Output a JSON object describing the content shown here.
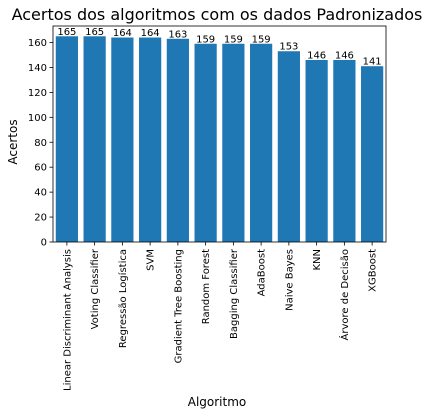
{
  "chart_data": {
    "type": "bar",
    "title": "Acertos dos algoritmos com os dados Padronizados",
    "xlabel": "Algoritmo",
    "ylabel": "Acertos",
    "categories": [
      "Linear Discriminant Analysis",
      "Voting Classifier",
      "Regressão Logística",
      "SVM",
      "Gradient Tree Boosting",
      "Random Forest",
      "Bagging Classifier",
      "AdaBoost",
      "Naive Bayes",
      "KNN",
      "Árvore de Decisão",
      "XGBoost"
    ],
    "values": [
      165,
      165,
      164,
      164,
      163,
      159,
      159,
      159,
      153,
      146,
      146,
      141
    ],
    "data_labels": [
      "165",
      "165",
      "164",
      "164",
      "163",
      "159",
      "159",
      "159",
      "153",
      "146",
      "146",
      "141"
    ],
    "ylim": [
      0,
      173.25
    ],
    "yticks": [
      0,
      20,
      40,
      60,
      80,
      100,
      120,
      140,
      160
    ],
    "grid": false,
    "bar_color": "#1f77b4"
  }
}
